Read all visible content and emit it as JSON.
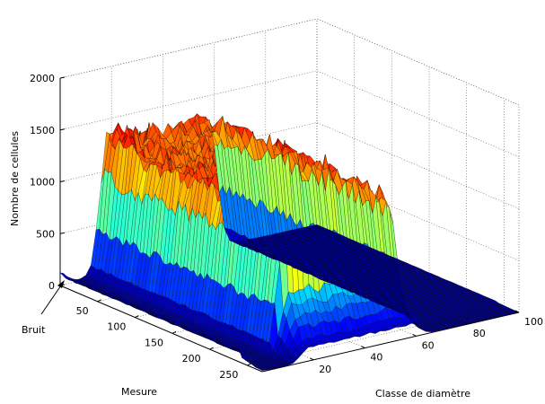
{
  "chart_data": {
    "type": "surface",
    "title": "",
    "zlabel": "Nombre de cellules",
    "xlabel": "Mesure",
    "ylabel": "Classe de diamètre",
    "annotation": "Bruit",
    "x_ticks": [
      "50",
      "100",
      "150",
      "200",
      "250"
    ],
    "y_ticks": [
      "20",
      "40",
      "60",
      "80",
      "100"
    ],
    "z_ticks": [
      "0",
      "500",
      "1000",
      "1500",
      "2000"
    ],
    "xlim": [
      0,
      270
    ],
    "ylim": [
      0,
      100
    ],
    "zlim": [
      0,
      2000
    ],
    "grid": true,
    "colormap": "jet",
    "surface_profile": {
      "diameter_class": [
        1,
        2,
        4,
        6,
        8,
        10,
        12,
        14,
        16,
        18,
        20,
        22,
        24,
        26,
        28,
        30,
        35,
        40,
        45,
        50,
        55,
        58,
        60,
        62,
        64,
        66,
        70,
        80,
        90,
        100
      ],
      "cells": [
        120,
        60,
        30,
        20,
        20,
        40,
        120,
        450,
        950,
        1280,
        1350,
        1320,
        1300,
        1290,
        1280,
        1260,
        1250,
        1240,
        1250,
        1270,
        1280,
        1250,
        1100,
        600,
        200,
        60,
        30,
        20,
        20,
        15
      ]
    }
  }
}
